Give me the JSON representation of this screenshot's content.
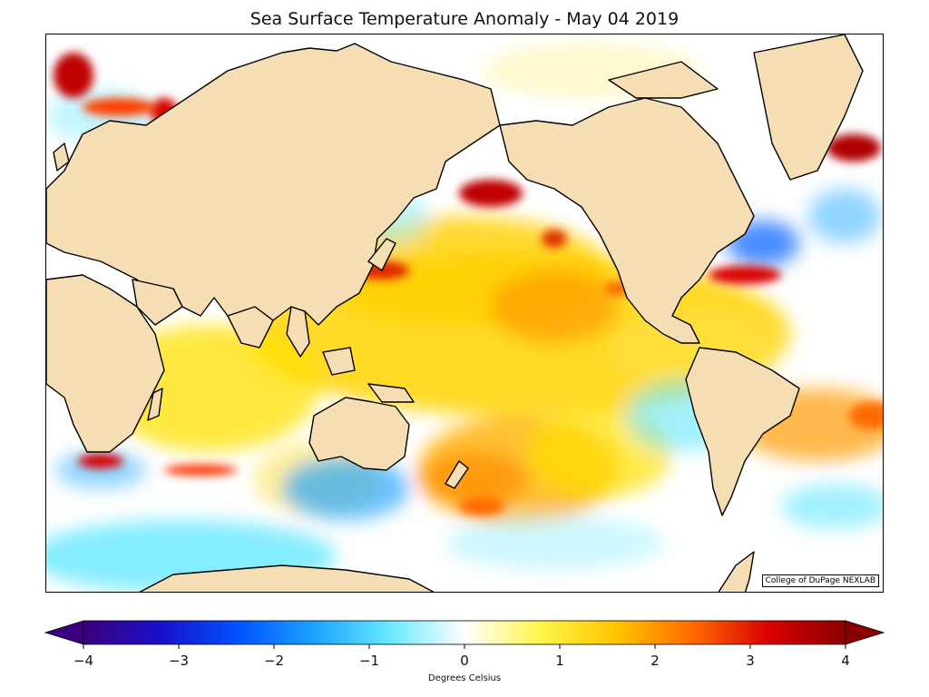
{
  "title": "Sea Surface Temperature Anomaly - May 04 2019",
  "credit": "College of DuPage NEXLAB",
  "colorbar": {
    "label": "Degrees Celsius",
    "min": -4,
    "max": 4,
    "extend": "both",
    "ticks": [
      "−4",
      "−3",
      "−2",
      "−1",
      "0",
      "1",
      "2",
      "3",
      "4"
    ],
    "tick_values": [
      -4,
      -3,
      -2,
      -1,
      0,
      1,
      2,
      3,
      4
    ],
    "colors": [
      "#3a0080",
      "#1a10c8",
      "#0050ff",
      "#1aa0ff",
      "#66e8ff",
      "#ffffff",
      "#fff54a",
      "#ffc400",
      "#ff6a00",
      "#d80000",
      "#8a0000"
    ]
  },
  "map": {
    "land_color": "#f5deb3",
    "projection": "Pacific-centered cylindrical"
  }
}
